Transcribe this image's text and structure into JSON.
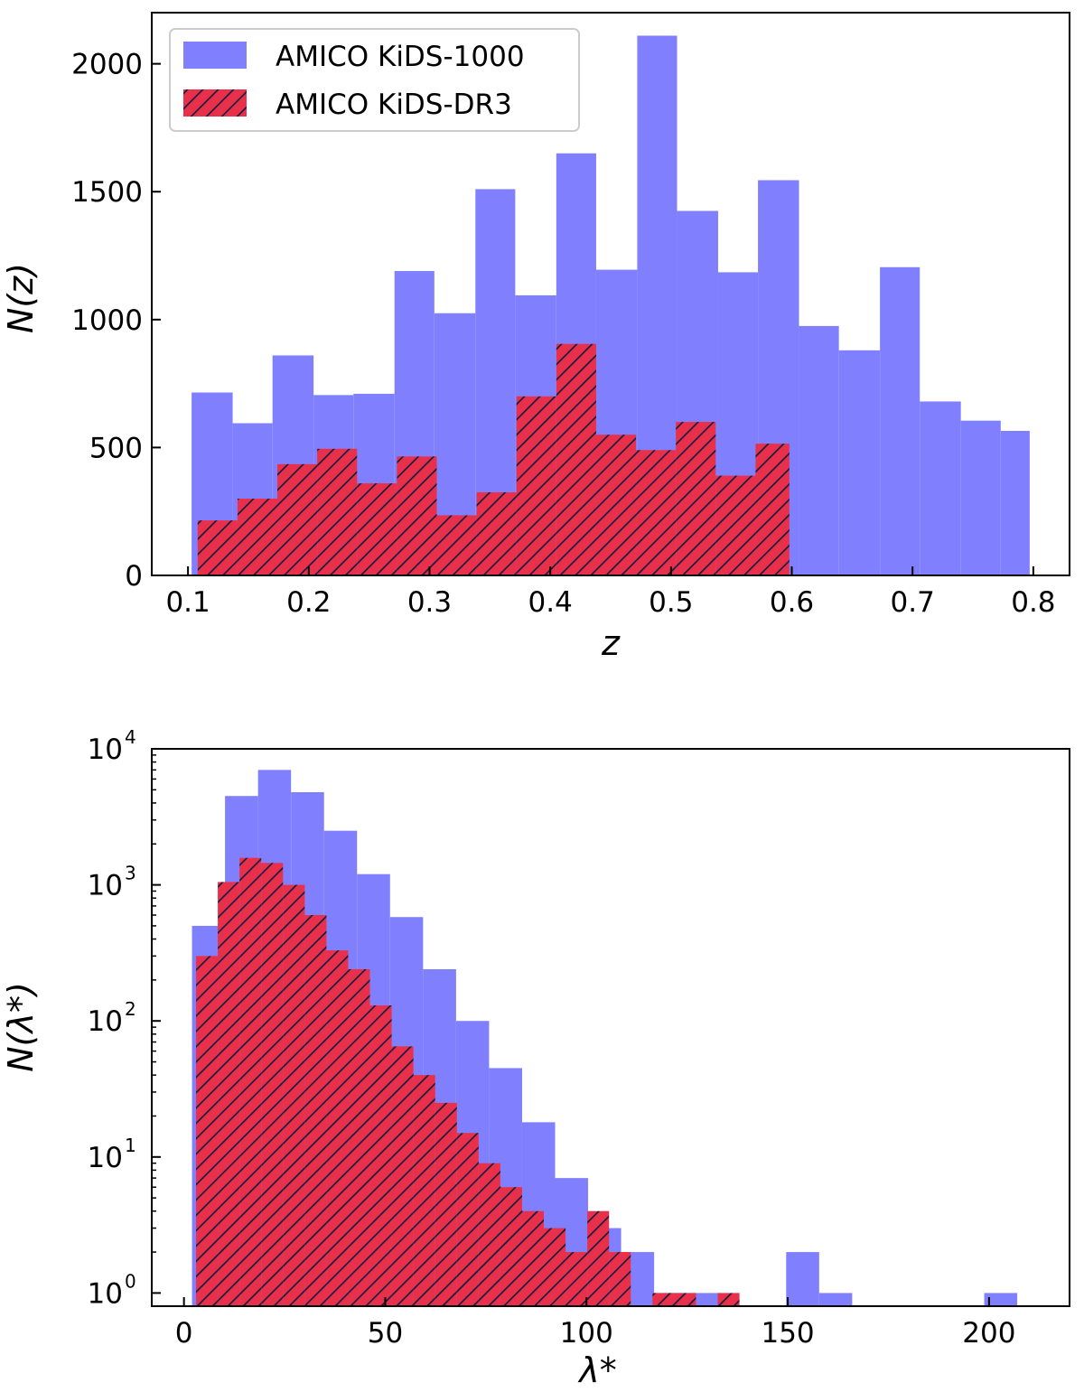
{
  "colors": {
    "kids1000": "#8080ff",
    "kidsdr3": "#e8304a",
    "hatch": "#1a1a40"
  },
  "legend": {
    "items": [
      "AMICO KiDS-1000",
      "AMICO KiDS-DR3"
    ]
  },
  "chart_data": [
    {
      "type": "bar",
      "xlabel": "z",
      "ylabel": "N(z)",
      "xlim": [
        0.07,
        0.83
      ],
      "ylim": [
        0,
        2200
      ],
      "xticks": [
        0.1,
        0.2,
        0.3,
        0.4,
        0.5,
        0.6,
        0.7,
        0.8
      ],
      "xtick_labels": [
        "0.1",
        "0.2",
        "0.3",
        "0.4",
        "0.5",
        "0.6",
        "0.7",
        "0.8"
      ],
      "yticks": [
        0,
        500,
        1000,
        1500,
        2000
      ],
      "ytick_labels": [
        "0",
        "500",
        "1000",
        "1500",
        "2000"
      ],
      "legend_position": "top-left",
      "series": [
        {
          "name": "AMICO KiDS-1000",
          "style": "solid",
          "bin_edges": [
            0.103,
            0.137,
            0.17,
            0.204,
            0.237,
            0.271,
            0.304,
            0.338,
            0.371,
            0.405,
            0.438,
            0.472,
            0.505,
            0.539,
            0.572,
            0.606,
            0.639,
            0.673,
            0.706,
            0.74,
            0.773,
            0.797
          ],
          "values": [
            715,
            595,
            860,
            705,
            710,
            1190,
            1025,
            1510,
            1095,
            1650,
            1195,
            2110,
            1425,
            1185,
            1545,
            975,
            880,
            1205,
            680,
            605,
            565
          ]
        },
        {
          "name": "AMICO KiDS-DR3",
          "style": "hatched",
          "bin_edges": [
            0.108,
            0.141,
            0.174,
            0.207,
            0.24,
            0.273,
            0.306,
            0.339,
            0.372,
            0.405,
            0.438,
            0.471,
            0.504,
            0.537,
            0.57,
            0.598
          ],
          "values": [
            215,
            300,
            435,
            495,
            360,
            465,
            235,
            325,
            700,
            905,
            550,
            490,
            600,
            390,
            515
          ]
        }
      ]
    },
    {
      "type": "bar",
      "xlabel": "λ*",
      "ylabel": "N(λ*)",
      "xlim": [
        -8,
        220
      ],
      "ylim": [
        0.8,
        10000
      ],
      "yscale": "log",
      "xticks": [
        0,
        50,
        100,
        150,
        200
      ],
      "xtick_labels": [
        "0",
        "50",
        "100",
        "150",
        "200"
      ],
      "yticks": [
        1,
        10,
        100,
        1000,
        10000
      ],
      "ytick_labels": [
        "10",
        "10",
        "10",
        "10",
        "10"
      ],
      "ytick_exponents": [
        "0",
        "1",
        "2",
        "3",
        "4"
      ],
      "series": [
        {
          "name": "AMICO KiDS-1000",
          "style": "solid",
          "bin_edges": [
            2.0,
            10.2,
            18.4,
            26.6,
            34.8,
            43.0,
            51.2,
            59.4,
            67.6,
            75.8,
            84.0,
            92.2,
            100.4,
            108.6,
            116.8,
            125.0,
            133.2,
            141.4,
            149.6,
            157.8,
            166.0,
            174.2,
            182.4,
            190.6,
            198.8,
            207.0
          ],
          "values": [
            500,
            4500,
            7000,
            4800,
            2500,
            1200,
            580,
            240,
            100,
            45,
            18,
            7,
            3,
            2,
            1,
            1,
            0,
            0,
            2,
            1,
            0,
            0,
            0,
            0,
            1
          ]
        },
        {
          "name": "AMICO KiDS-DR3",
          "style": "hatched",
          "bin_edges": [
            3.0,
            8.4,
            13.8,
            19.2,
            24.6,
            30.0,
            35.4,
            40.8,
            46.2,
            51.6,
            57.0,
            62.4,
            67.8,
            73.2,
            78.6,
            84.0,
            89.4,
            94.8,
            100.2,
            105.6,
            111.0,
            116.4,
            121.8,
            127.2,
            132.6,
            138.0
          ],
          "values": [
            300,
            1050,
            1580,
            1450,
            1000,
            600,
            330,
            240,
            130,
            65,
            40,
            25,
            15,
            9,
            6,
            4,
            3,
            2,
            4,
            2,
            0,
            1,
            1,
            0,
            1
          ]
        }
      ]
    }
  ]
}
